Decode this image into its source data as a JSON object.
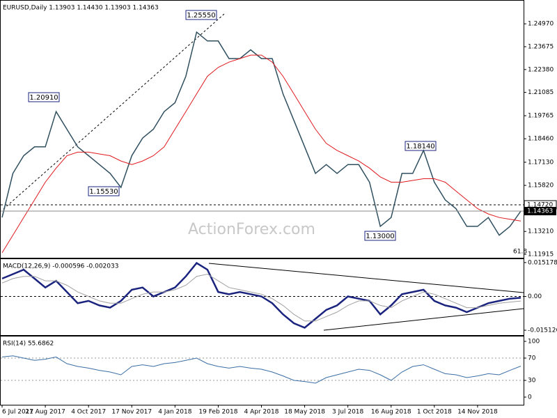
{
  "chart_data": [
    {
      "type": "line",
      "title": "EURUSD,Daily  1.13903 1.14430 1.13903 1.14363",
      "categories": [
        "6 Jul 2017",
        null,
        null,
        null,
        "21 Aug 2017",
        null,
        null,
        null,
        "4 Oct 2017",
        null,
        null,
        null,
        "17 Nov 2017",
        null,
        null,
        null,
        "4 Jan 2018",
        null,
        null,
        null,
        "19 Feb 2018",
        null,
        null,
        null,
        "4 Apr 2018",
        null,
        null,
        null,
        "18 May 2018",
        null,
        null,
        null,
        "3 Jul 2018",
        null,
        null,
        null,
        "16 Aug 2018",
        null,
        null,
        null,
        "1 Oct 2018",
        null,
        null,
        null,
        "14 Nov 2018",
        null,
        null,
        null,
        null
      ],
      "series": [
        {
          "color": "#2f4f5f",
          "values": [
            1.14,
            1.165,
            1.175,
            1.18,
            1.18,
            1.2,
            1.19,
            1.18,
            1.175,
            1.17,
            1.165,
            1.157,
            1.175,
            1.185,
            1.19,
            1.2,
            1.205,
            1.22,
            1.245,
            1.24,
            1.24,
            1.23,
            1.23,
            1.235,
            1.23,
            1.23,
            1.21,
            1.195,
            1.18,
            1.165,
            1.17,
            1.165,
            1.17,
            1.17,
            1.16,
            1.135,
            1.14,
            1.165,
            1.165,
            1.178,
            1.16,
            1.15,
            1.145,
            1.135,
            1.135,
            1.14,
            1.13,
            1.135,
            1.14363
          ]
        },
        {
          "color": "#e0191e",
          "values": [
            1.12,
            1.13,
            1.14,
            1.15,
            1.16,
            1.168,
            1.175,
            1.177,
            1.177,
            1.176,
            1.175,
            1.172,
            1.17,
            1.172,
            1.175,
            1.18,
            1.19,
            1.2,
            1.21,
            1.22,
            1.225,
            1.228,
            1.23,
            1.232,
            1.232,
            1.228,
            1.22,
            1.21,
            1.2,
            1.19,
            1.182,
            1.178,
            1.175,
            1.172,
            1.168,
            1.163,
            1.16,
            1.16,
            1.161,
            1.162,
            1.162,
            1.16,
            1.155,
            1.15,
            1.145,
            1.142,
            1.14,
            1.139,
            1.138
          ]
        }
      ],
      "ylim": [
        1.1172,
        1.2628
      ],
      "yticks": [
        {
          "value": 1.2497,
          "label": "1.24970"
        },
        {
          "value": 1.23675,
          "label": "1.23675"
        },
        {
          "value": 1.2238,
          "label": "1.22380"
        },
        {
          "value": 1.21085,
          "label": "1.21085"
        },
        {
          "value": 1.19765,
          "label": "1.19765"
        },
        {
          "value": 1.1846,
          "label": "1.18460"
        },
        {
          "value": 1.1713,
          "label": "1.17130"
        },
        {
          "value": 1.1582,
          "label": "1.15820"
        },
        {
          "value": 1.1321,
          "label": "1.13210"
        },
        {
          "value": 1.11915,
          "label": "1.11915"
        }
      ],
      "hline": {
        "value": 1.1472,
        "label": "1.14720"
      },
      "last": {
        "value": 1.14363,
        "label": "1.14363"
      },
      "annotations": [
        "1.25550",
        "1.20910",
        "1.15530",
        "1.13000",
        "1.18140",
        "61.8"
      ],
      "watermark": "ActionForex.com"
    },
    {
      "type": "line",
      "title": "MACD(12,26,9) -0.000596 -0.002033",
      "series": [
        {
          "color": "#1a237e",
          "values": [
            0.008,
            0.01,
            0.012,
            0.008,
            0.004,
            0.007,
            0.002,
            -0.003,
            -0.002,
            -0.004,
            -0.005,
            -0.002,
            0.003,
            0.004,
            0.0,
            0.002,
            0.004,
            0.009,
            0.015,
            0.012,
            0.002,
            0.001,
            0.002,
            0.001,
            0.0,
            -0.003,
            -0.008,
            -0.012,
            -0.014,
            -0.01,
            -0.006,
            -0.004,
            0.0,
            -0.001,
            -0.002,
            -0.008,
            -0.004,
            0.001,
            0.002,
            0.003,
            -0.002,
            -0.004,
            -0.005,
            -0.007,
            -0.005,
            -0.003,
            -0.002,
            -0.001,
            -0.000596
          ]
        },
        {
          "color": "#a0a0a0",
          "values": [
            0.006,
            0.008,
            0.009,
            0.009,
            0.007,
            0.007,
            0.005,
            0.002,
            0.0,
            -0.002,
            -0.003,
            -0.003,
            -0.001,
            0.001,
            0.002,
            0.002,
            0.003,
            0.005,
            0.009,
            0.01,
            0.007,
            0.004,
            0.003,
            0.002,
            0.001,
            -0.001,
            -0.004,
            -0.008,
            -0.011,
            -0.011,
            -0.009,
            -0.007,
            -0.004,
            -0.002,
            -0.002,
            -0.004,
            -0.005,
            -0.002,
            0.0,
            0.002,
            0.001,
            -0.001,
            -0.003,
            -0.005,
            -0.005,
            -0.004,
            -0.003,
            -0.0025,
            -0.002033
          ]
        }
      ],
      "ylim": [
        -0.0173,
        0.0167
      ],
      "yticks": [
        0.015178,
        {
          "value": 0,
          "label": "0.00"
        },
        -0.015126
      ],
      "hlines": [
        0
      ]
    },
    {
      "type": "line",
      "title": "RSI(14) 55.6862",
      "series": [
        {
          "color": "#3a6ea5",
          "values": [
            72,
            74,
            70,
            66,
            68,
            72,
            60,
            55,
            52,
            48,
            45,
            40,
            55,
            58,
            55,
            60,
            62,
            66,
            70,
            60,
            55,
            52,
            55,
            52,
            50,
            45,
            38,
            30,
            28,
            25,
            35,
            40,
            45,
            50,
            48,
            40,
            30,
            45,
            55,
            58,
            50,
            42,
            40,
            35,
            38,
            42,
            40,
            48,
            55.6862
          ]
        }
      ],
      "ylim": [
        -13.75,
        108.75
      ],
      "yticks": [
        100,
        70,
        30,
        0
      ],
      "hlines": [
        70,
        30
      ]
    }
  ]
}
